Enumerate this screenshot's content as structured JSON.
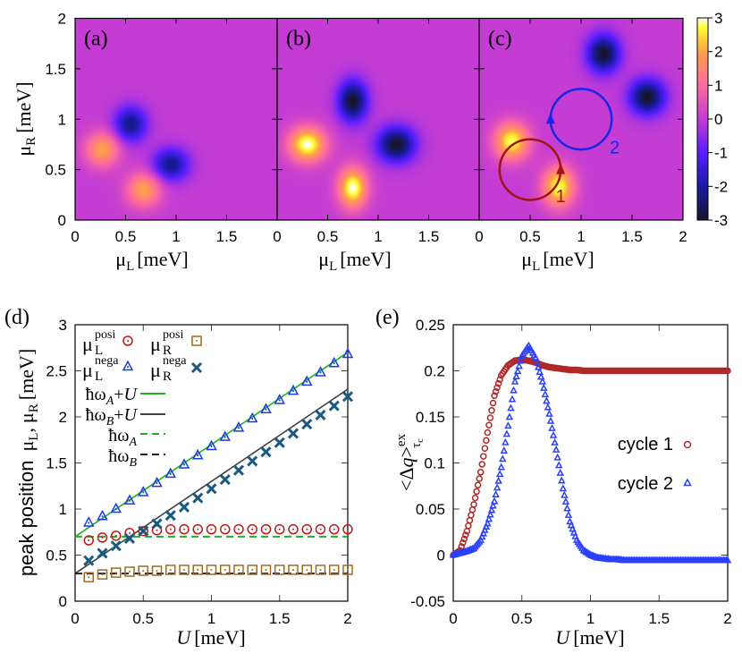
{
  "colorbar": {
    "range": [
      -3,
      3
    ],
    "ticks": [
      "3",
      "2",
      "1",
      "0",
      "-1",
      "-2",
      "-3"
    ],
    "tick_values": [
      3,
      2,
      1,
      0,
      -1,
      -2,
      -3
    ],
    "colors": {
      "-3": "#16162a",
      "-2": "#1a1aa8",
      "-1": "#5a1eff",
      "0": "#c43cd4",
      "1": "#ff6aa0",
      "2": "#ffa04a",
      "2.7": "#ffff30",
      "3": "#ffffff"
    }
  },
  "heatmap_axes": {
    "ylabel": {
      "sym": "μ",
      "sub": "R",
      "unit": "[meV]"
    },
    "xlabel": {
      "sym": "μ",
      "sub": "L",
      "unit": "[meV]"
    },
    "yticks": [
      "0",
      "0.5",
      "1",
      "1.5",
      "2"
    ],
    "ytick_values": [
      0,
      0.5,
      1,
      1.5,
      2
    ]
  },
  "chart_data": [
    {
      "type": "heatmap",
      "panel_label": "(a)",
      "xlim": [
        0,
        2
      ],
      "ylim": [
        0,
        2
      ],
      "xticks": [
        "0",
        "0.5",
        "1",
        "1.5"
      ],
      "xtick_values": [
        0,
        0.5,
        1,
        1.5
      ],
      "features": [
        {
          "center": [
            0.27,
            0.7
          ],
          "amplitude": 2.0,
          "sigma": [
            0.12,
            0.12
          ]
        },
        {
          "center": [
            0.68,
            0.3
          ],
          "amplitude": 2.0,
          "sigma": [
            0.12,
            0.12
          ]
        },
        {
          "center": [
            0.55,
            0.95
          ],
          "amplitude": -2.3,
          "sigma": [
            0.11,
            0.12
          ]
        },
        {
          "center": [
            0.95,
            0.55
          ],
          "amplitude": -2.3,
          "sigma": [
            0.12,
            0.11
          ]
        }
      ]
    },
    {
      "type": "heatmap",
      "panel_label": "(b)",
      "xlim": [
        0,
        2
      ],
      "ylim": [
        0,
        2
      ],
      "xticks": [
        "0",
        "0.5",
        "1",
        "1.5"
      ],
      "xtick_values": [
        0,
        0.5,
        1,
        1.5
      ],
      "features": [
        {
          "center": [
            0.3,
            0.75
          ],
          "amplitude": 3.0,
          "sigma": [
            0.13,
            0.12
          ]
        },
        {
          "center": [
            0.75,
            0.32
          ],
          "amplitude": 3.0,
          "sigma": [
            0.1,
            0.14
          ]
        },
        {
          "center": [
            0.75,
            1.18
          ],
          "amplitude": -3.0,
          "sigma": [
            0.1,
            0.14
          ]
        },
        {
          "center": [
            1.18,
            0.75
          ],
          "amplitude": -3.0,
          "sigma": [
            0.13,
            0.12
          ]
        }
      ]
    },
    {
      "type": "heatmap",
      "panel_label": "(c)",
      "xlim": [
        0,
        2
      ],
      "ylim": [
        0,
        2
      ],
      "xticks": [
        "0",
        "0.5",
        "1",
        "1.5",
        "2"
      ],
      "xtick_values": [
        0,
        0.5,
        1,
        1.5,
        2
      ],
      "features": [
        {
          "center": [
            0.32,
            0.78
          ],
          "amplitude": 2.8,
          "sigma": [
            0.12,
            0.13
          ]
        },
        {
          "center": [
            0.78,
            0.33
          ],
          "amplitude": 2.8,
          "sigma": [
            0.11,
            0.14
          ]
        },
        {
          "center": [
            1.22,
            1.65
          ],
          "amplitude": -3.0,
          "sigma": [
            0.11,
            0.13
          ]
        },
        {
          "center": [
            1.65,
            1.22
          ],
          "amplitude": -3.0,
          "sigma": [
            0.12,
            0.12
          ]
        }
      ],
      "cycles": [
        {
          "label": "1",
          "center": [
            0.5,
            0.5
          ],
          "radius": 0.3,
          "color": "#a01414",
          "arrow_at": [
            0.8,
            0.5
          ],
          "label_at": [
            0.8,
            0.25
          ]
        },
        {
          "label": "2",
          "center": [
            1.0,
            1.0
          ],
          "radius": 0.3,
          "color": "#1428e6",
          "arrow_at": [
            0.7,
            1.0
          ],
          "label_at": [
            1.33,
            0.73
          ]
        }
      ]
    },
    {
      "type": "scatter",
      "panel_label": "(d)",
      "xlim": [
        0,
        2
      ],
      "ylim": [
        0,
        3
      ],
      "xticks": [
        "0",
        "0.5",
        "1",
        "1.5",
        "2"
      ],
      "xtick_values": [
        0,
        0.5,
        1,
        1.5,
        2
      ],
      "yticks": [
        "0",
        "0.5",
        "1",
        "1.5",
        "2",
        "2.5",
        "3"
      ],
      "ytick_values": [
        0,
        0.5,
        1,
        1.5,
        2,
        2.5,
        3
      ],
      "xlabel": {
        "var": "U",
        "unit": "[meV]"
      },
      "ylabel": {
        "prefix": "peak position",
        "sym1": "μ",
        "sub1": "L",
        "sep": ",",
        "sym2": "μ",
        "sub2": "R",
        "unit": "[meV]"
      },
      "legend_placement": "top-left",
      "x": [
        0.1,
        0.2,
        0.3,
        0.4,
        0.5,
        0.6,
        0.7,
        0.8,
        0.9,
        1.0,
        1.1,
        1.2,
        1.3,
        1.4,
        1.5,
        1.6,
        1.7,
        1.8,
        1.9,
        2.0
      ],
      "series": [
        {
          "name": {
            "sym": "μ",
            "sub": "L",
            "sup": "posi"
          },
          "marker": "circle",
          "color": "#c01818",
          "values": [
            0.66,
            0.69,
            0.71,
            0.74,
            0.76,
            0.77,
            0.78,
            0.78,
            0.78,
            0.78,
            0.78,
            0.78,
            0.78,
            0.78,
            0.78,
            0.78,
            0.78,
            0.78,
            0.78,
            0.78
          ]
        },
        {
          "name": {
            "sym": "μ",
            "sub": "R",
            "sup": "posi"
          },
          "marker": "square",
          "color": "#a06a20",
          "values": [
            0.26,
            0.29,
            0.31,
            0.32,
            0.33,
            0.33,
            0.34,
            0.34,
            0.34,
            0.34,
            0.34,
            0.34,
            0.34,
            0.34,
            0.34,
            0.34,
            0.34,
            0.34,
            0.34,
            0.34
          ]
        },
        {
          "name": {
            "sym": "μ",
            "sub": "L",
            "sup": "nega"
          },
          "marker": "triangle",
          "color": "#1a3ae6",
          "values": [
            0.85,
            0.92,
            1.0,
            1.09,
            1.18,
            1.28,
            1.38,
            1.48,
            1.58,
            1.68,
            1.78,
            1.88,
            1.98,
            2.08,
            2.18,
            2.28,
            2.38,
            2.48,
            2.58,
            2.68
          ]
        },
        {
          "name": {
            "sym": "μ",
            "sub": "R",
            "sup": "nega"
          },
          "marker": "x",
          "color": "#1a5a80",
          "values": [
            0.44,
            0.52,
            0.6,
            0.68,
            0.76,
            0.84,
            0.93,
            1.02,
            1.12,
            1.22,
            1.32,
            1.42,
            1.52,
            1.62,
            1.72,
            1.82,
            1.92,
            2.02,
            2.12,
            2.22
          ]
        }
      ],
      "lines": [
        {
          "name": {
            "sym": "ħω",
            "sub": "A",
            "tail": "+",
            "var": "U"
          },
          "intercept": 0.7,
          "slope": 1,
          "color": "#20b020",
          "dash": false
        },
        {
          "name": {
            "sym": "ħω",
            "sub": "B",
            "tail": "+",
            "var": "U"
          },
          "intercept": 0.3,
          "slope": 1,
          "color": "#404040",
          "dash": false
        },
        {
          "name": {
            "sym": "ħω",
            "sub": "A",
            "tail": "",
            "var": ""
          },
          "intercept": 0.7,
          "slope": 0,
          "color": "#20b020",
          "dash": true
        },
        {
          "name": {
            "sym": "ħω",
            "sub": "B",
            "tail": "",
            "var": ""
          },
          "intercept": 0.3,
          "slope": 0,
          "color": "#202020",
          "dash": true
        }
      ]
    },
    {
      "type": "scatter",
      "panel_label": "(e)",
      "xlim": [
        0,
        2
      ],
      "ylim": [
        -0.05,
        0.25
      ],
      "xticks": [
        "0",
        "0.5",
        "1",
        "1.5",
        "2"
      ],
      "xtick_values": [
        0,
        0.5,
        1,
        1.5,
        2
      ],
      "yticks": [
        "-0.05",
        "0",
        "0.05",
        "0.1",
        "0.15",
        "0.2",
        "0.25"
      ],
      "ytick_values": [
        -0.05,
        0,
        0.05,
        0.1,
        0.15,
        0.2,
        0.25
      ],
      "xlabel": {
        "var": "U",
        "unit": "[meV]"
      },
      "ylabel": {
        "open": "<Δ",
        "var": "q",
        "close": ">",
        "sup": "ex",
        "sub": "τ",
        "subsub": "c"
      },
      "legend_placement": "right",
      "x": [
        0,
        0.05,
        0.1,
        0.15,
        0.2,
        0.25,
        0.3,
        0.35,
        0.4,
        0.45,
        0.5,
        0.55,
        0.6,
        0.65,
        0.7,
        0.75,
        0.8,
        0.85,
        0.9,
        0.95,
        1.0,
        1.05,
        1.1,
        1.15,
        1.2,
        1.25,
        1.3,
        1.35,
        1.4,
        1.45,
        1.5,
        1.55,
        1.6,
        1.65,
        1.7,
        1.75,
        1.8,
        1.85,
        1.9,
        1.95,
        2.0
      ],
      "series": [
        {
          "name": "cycle 1",
          "marker": "circle",
          "color": "#b02828",
          "values": [
            0,
            0.005,
            0.026,
            0.055,
            0.09,
            0.133,
            0.173,
            0.195,
            0.206,
            0.211,
            0.212,
            0.211,
            0.209,
            0.206,
            0.204,
            0.203,
            0.202,
            0.201,
            0.201,
            0.2,
            0.2,
            0.2,
            0.2,
            0.2,
            0.2,
            0.2,
            0.2,
            0.2,
            0.2,
            0.2,
            0.2,
            0.2,
            0.2,
            0.2,
            0.2,
            0.2,
            0.2,
            0.2,
            0.2,
            0.2,
            0.2
          ]
        },
        {
          "name": "cycle 2",
          "marker": "triangle",
          "color": "#2a40ff",
          "values": [
            0,
            0.002,
            0.004,
            0.007,
            0.016,
            0.034,
            0.058,
            0.095,
            0.14,
            0.188,
            0.216,
            0.227,
            0.214,
            0.188,
            0.153,
            0.114,
            0.072,
            0.036,
            0.016,
            0.005,
            0.0,
            -0.003,
            -0.004,
            -0.005,
            -0.005,
            -0.006,
            -0.006,
            -0.006,
            -0.006,
            -0.006,
            -0.006,
            -0.006,
            -0.006,
            -0.006,
            -0.006,
            -0.006,
            -0.006,
            -0.006,
            -0.006,
            -0.006,
            -0.006
          ]
        }
      ]
    }
  ]
}
